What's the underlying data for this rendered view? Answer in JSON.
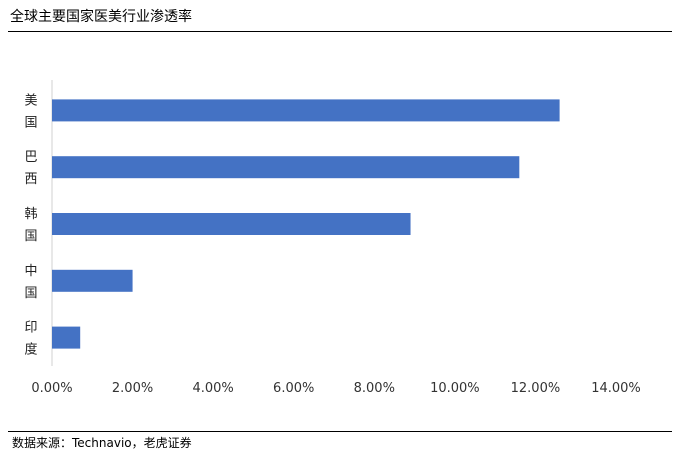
{
  "header": {
    "title": "全球主要国家医美行业渗透率"
  },
  "footer": {
    "source": "数据来源：Technavio，老虎证券"
  },
  "chart_data": {
    "type": "bar",
    "orientation": "horizontal",
    "title": "全球主要国家医美行业渗透率",
    "categories": [
      "美国",
      "巴西",
      "韩国",
      "中国",
      "印度"
    ],
    "values": [
      12.6,
      11.6,
      8.9,
      2.0,
      0.7
    ],
    "unit": "%",
    "xlim": [
      0,
      14
    ],
    "xticks": [
      "0.00%",
      "2.00%",
      "4.00%",
      "6.00%",
      "8.00%",
      "10.00%",
      "12.00%",
      "14.00%"
    ],
    "xtick_values": [
      0,
      2,
      4,
      6,
      8,
      10,
      12,
      14
    ],
    "grid": false,
    "legend": "none",
    "bar_color": "#4472C4"
  }
}
